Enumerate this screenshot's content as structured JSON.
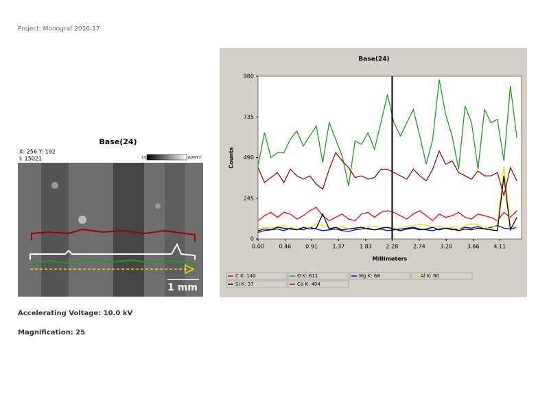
{
  "header": {
    "text": "Project: Monograf 2016-17"
  },
  "image_panel": {
    "title": "Base(24)",
    "coords": "X: 256 Y: 192",
    "intensity": "I: 15021",
    "scale_min": "15",
    "scale_max": "62977",
    "scale_bar": "1 mm"
  },
  "captions": [
    "Accelerating Voltage: 10.0 kV",
    "Magnification: 25"
  ],
  "chart_data": {
    "type": "line",
    "title": "Base(24)",
    "x_label": "Millimeters",
    "y_label": "Counts",
    "xlim": [
      0,
      4.48
    ],
    "ylim": [
      0,
      980
    ],
    "yticks": [
      0,
      245,
      490,
      735,
      980
    ],
    "xticks": [
      {
        "value": 0,
        "label": "0.00"
      },
      0.46,
      0.91,
      1.37,
      1.83,
      2.28,
      2.74,
      {
        "value": 3.2,
        "label": "3.20"
      },
      3.66,
      4.11
    ],
    "cursor": 2.28,
    "x": [
      0,
      0.11,
      0.22,
      0.33,
      0.44,
      0.55,
      0.66,
      0.77,
      0.88,
      0.99,
      1.1,
      1.21,
      1.32,
      1.43,
      1.54,
      1.65,
      1.76,
      1.87,
      1.98,
      2.09,
      2.2,
      2.31,
      2.42,
      2.53,
      2.64,
      2.75,
      2.86,
      2.97,
      3.08,
      3.19,
      3.3,
      3.41,
      3.52,
      3.63,
      3.74,
      3.85,
      3.96,
      4.07,
      4.18,
      4.29,
      4.4
    ],
    "series": [
      {
        "name": "C K: 140",
        "color": "#ff0000",
        "values": [
          110,
          140,
          160,
          130,
          160,
          150,
          120,
          140,
          170,
          190,
          140,
          110,
          130,
          150,
          120,
          110,
          150,
          160,
          130,
          160,
          170,
          160,
          140,
          120,
          150,
          170,
          140,
          110,
          150,
          130,
          140,
          160,
          130,
          120,
          150,
          140,
          130,
          110,
          160,
          130,
          170
        ]
      },
      {
        "name": "O K: 611",
        "color": "#1f9a1f",
        "values": [
          440,
          640,
          490,
          520,
          520,
          600,
          650,
          560,
          620,
          680,
          460,
          700,
          600,
          500,
          320,
          590,
          570,
          640,
          540,
          700,
          870,
          700,
          620,
          700,
          780,
          620,
          450,
          600,
          960,
          750,
          620,
          420,
          800,
          700,
          420,
          780,
          700,
          720,
          470,
          920,
          610
        ]
      },
      {
        "name": "Mg K: 68",
        "color": "#0000ff",
        "values": [
          40,
          50,
          55,
          60,
          50,
          65,
          60,
          55,
          70,
          60,
          50,
          55,
          60,
          50,
          45,
          55,
          60,
          65,
          55,
          60,
          50,
          55,
          60,
          65,
          70,
          60,
          55,
          50,
          60,
          65,
          55,
          60,
          70,
          65,
          75,
          60,
          70,
          80,
          65,
          60,
          70
        ]
      },
      {
        "name": "Al K: 80",
        "color": "#f0e000",
        "values": [
          60,
          70,
          65,
          75,
          80,
          70,
          60,
          65,
          70,
          90,
          80,
          70,
          65,
          75,
          60,
          70,
          65,
          80,
          75,
          70,
          65,
          60,
          70,
          75,
          80,
          90,
          85,
          70,
          75,
          65,
          70,
          60,
          80,
          90,
          85,
          70,
          60,
          90,
          440,
          80,
          70
        ]
      },
      {
        "name": "Si K: 37",
        "color": "#000000",
        "values": [
          50,
          60,
          55,
          70,
          65,
          60,
          55,
          70,
          60,
          65,
          150,
          60,
          70,
          55,
          60,
          65,
          70,
          60,
          55,
          65,
          70,
          60,
          50,
          60,
          65,
          55,
          60,
          70,
          55,
          65,
          60,
          50,
          60,
          55,
          65,
          60,
          55,
          50,
          380,
          55,
          130
        ]
      },
      {
        "name": "Ca K: 404",
        "color": "#8b1010",
        "values": [
          430,
          340,
          370,
          400,
          340,
          420,
          380,
          360,
          380,
          330,
          300,
          420,
          520,
          470,
          430,
          370,
          380,
          360,
          370,
          420,
          420,
          400,
          380,
          360,
          420,
          380,
          350,
          420,
          530,
          450,
          470,
          400,
          380,
          360,
          410,
          380,
          380,
          400,
          260,
          430,
          350
        ]
      }
    ]
  }
}
